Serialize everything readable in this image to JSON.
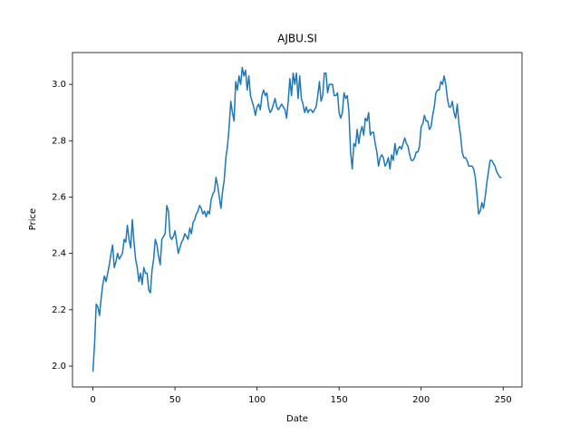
{
  "chart_data": {
    "type": "line",
    "title": "AJBU.SI",
    "x_label": "Date",
    "y_label": "Price",
    "color": "#1f77b4",
    "x": [
      0,
      1,
      2,
      3,
      4,
      5,
      6,
      7,
      8,
      9,
      10,
      11,
      12,
      13,
      14,
      15,
      16,
      17,
      18,
      19,
      20,
      21,
      22,
      23,
      24,
      25,
      26,
      27,
      28,
      29,
      30,
      31,
      32,
      33,
      34,
      35,
      36,
      37,
      38,
      39,
      40,
      41,
      42,
      43,
      44,
      45,
      46,
      47,
      48,
      49,
      50,
      51,
      52,
      53,
      54,
      55,
      56,
      57,
      58,
      59,
      60,
      61,
      62,
      63,
      64,
      65,
      66,
      67,
      68,
      69,
      70,
      71,
      72,
      73,
      74,
      75,
      76,
      77,
      78,
      79,
      80,
      81,
      82,
      83,
      84,
      85,
      86,
      87,
      88,
      89,
      90,
      91,
      92,
      93,
      94,
      95,
      96,
      97,
      98,
      99,
      100,
      101,
      102,
      103,
      104,
      105,
      106,
      107,
      108,
      109,
      110,
      111,
      112,
      113,
      114,
      115,
      116,
      117,
      118,
      119,
      120,
      121,
      122,
      123,
      124,
      125,
      126,
      127,
      128,
      129,
      130,
      131,
      132,
      133,
      134,
      135,
      136,
      137,
      138,
      139,
      140,
      141,
      142,
      143,
      144,
      145,
      146,
      147,
      148,
      149,
      150,
      151,
      152,
      153,
      154,
      155,
      156,
      157,
      158,
      159,
      160,
      161,
      162,
      163,
      164,
      165,
      166,
      167,
      168,
      169,
      170,
      171,
      172,
      173,
      174,
      175,
      176,
      177,
      178,
      179,
      180,
      181,
      182,
      183,
      184,
      185,
      186,
      187,
      188,
      189,
      190,
      191,
      192,
      193,
      194,
      195,
      196,
      197,
      198,
      199,
      200,
      201,
      202,
      203,
      204,
      205,
      206,
      207,
      208,
      209,
      210,
      211,
      212,
      213,
      214,
      215,
      216,
      217,
      218,
      219,
      220,
      221,
      222,
      223,
      224,
      225,
      226,
      227,
      228,
      229,
      230,
      231,
      232,
      233,
      234,
      235,
      236,
      237,
      238,
      239,
      240,
      241,
      242,
      243,
      244,
      245,
      246,
      247,
      248,
      249
    ],
    "values": [
      1.98,
      2.08,
      2.22,
      2.21,
      2.18,
      2.24,
      2.29,
      2.32,
      2.3,
      2.33,
      2.36,
      2.4,
      2.43,
      2.35,
      2.37,
      2.4,
      2.38,
      2.39,
      2.4,
      2.45,
      2.44,
      2.5,
      2.45,
      2.42,
      2.52,
      2.44,
      2.38,
      2.35,
      2.3,
      2.33,
      2.29,
      2.35,
      2.33,
      2.33,
      2.27,
      2.26,
      2.34,
      2.38,
      2.45,
      2.43,
      2.39,
      2.36,
      2.45,
      2.46,
      2.47,
      2.57,
      2.55,
      2.46,
      2.45,
      2.46,
      2.48,
      2.44,
      2.4,
      2.42,
      2.44,
      2.45,
      2.47,
      2.46,
      2.45,
      2.49,
      2.47,
      2.51,
      2.52,
      2.54,
      2.55,
      2.57,
      2.56,
      2.54,
      2.55,
      2.53,
      2.55,
      2.54,
      2.59,
      2.61,
      2.62,
      2.67,
      2.64,
      2.6,
      2.56,
      2.62,
      2.66,
      2.74,
      2.78,
      2.85,
      2.94,
      2.9,
      2.87,
      3.01,
      2.98,
      3.03,
      3.0,
      3.06,
      3.03,
      3.05,
      2.98,
      3.03,
      2.96,
      2.94,
      2.92,
      2.89,
      2.92,
      2.93,
      2.91,
      2.96,
      2.98,
      2.96,
      2.97,
      2.92,
      2.9,
      2.91,
      2.93,
      2.95,
      2.92,
      2.91,
      2.92,
      2.93,
      2.92,
      2.91,
      2.88,
      2.94,
      3.02,
      2.96,
      3.04,
      3.0,
      3.04,
      2.95,
      3.03,
      2.95,
      2.93,
      2.9,
      2.92,
      2.9,
      2.91,
      2.91,
      2.9,
      2.91,
      2.92,
      2.96,
      3.01,
      2.94,
      2.96,
      3.04,
      3.04,
      2.97,
      3.0,
      3.0,
      3.0,
      2.96,
      2.96,
      2.97,
      2.9,
      2.88,
      2.9,
      2.97,
      2.95,
      2.96,
      2.9,
      2.76,
      2.7,
      2.79,
      2.78,
      2.84,
      2.79,
      2.83,
      2.85,
      2.82,
      2.88,
      2.87,
      2.9,
      2.82,
      2.83,
      2.83,
      2.79,
      2.76,
      2.71,
      2.74,
      2.75,
      2.74,
      2.71,
      2.72,
      2.74,
      2.7,
      2.75,
      2.73,
      2.79,
      2.75,
      2.77,
      2.78,
      2.77,
      2.79,
      2.81,
      2.79,
      2.78,
      2.75,
      2.73,
      2.73,
      2.74,
      2.76,
      2.76,
      2.78,
      2.85,
      2.86,
      2.89,
      2.87,
      2.87,
      2.84,
      2.85,
      2.89,
      2.92,
      2.97,
      2.98,
      2.98,
      3.01,
      3.0,
      3.03,
      3.0,
      2.95,
      2.92,
      2.92,
      2.94,
      2.9,
      2.88,
      2.93,
      2.86,
      2.82,
      2.76,
      2.74,
      2.74,
      2.73,
      2.71,
      2.71,
      2.71,
      2.7,
      2.67,
      2.61,
      2.54,
      2.55,
      2.58,
      2.56,
      2.6,
      2.65,
      2.69,
      2.73,
      2.73,
      2.72,
      2.71,
      2.69,
      2.68,
      2.67,
      2.67
    ],
    "xlim": [
      -12.45,
      261.45
    ],
    "ylim": [
      1.926,
      3.113
    ],
    "xticks": [
      0,
      50,
      100,
      150,
      200,
      250
    ],
    "yticks": [
      {
        "value": 2,
        "label": "2.0"
      },
      2.2,
      2.4,
      2.6,
      2.8,
      {
        "value": 3,
        "label": "3.0"
      }
    ]
  }
}
